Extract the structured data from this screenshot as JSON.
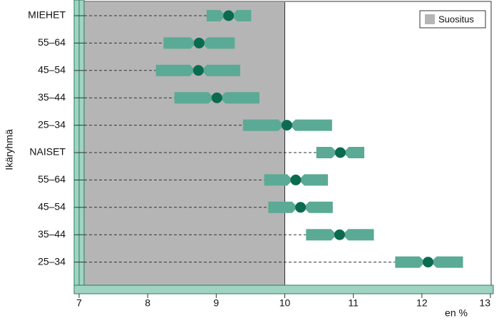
{
  "chart_data": {
    "type": "interval-dot",
    "y_label": "Ikäryhmä",
    "x_label": "en %",
    "categories": [
      "MIEHET",
      "55–64",
      "45–54",
      "35–44",
      "25–34",
      "NAISET",
      "55–64",
      "45–54",
      "35–44",
      "25–34"
    ],
    "low": [
      8.86,
      8.23,
      8.12,
      8.39,
      9.39,
      10.46,
      9.7,
      9.76,
      10.31,
      11.61
    ],
    "values": [
      9.18,
      8.75,
      8.74,
      9.01,
      10.03,
      10.81,
      10.16,
      10.23,
      10.8,
      12.09
    ],
    "high": [
      9.51,
      9.27,
      9.35,
      9.63,
      10.69,
      11.16,
      10.63,
      10.7,
      11.3,
      12.6
    ],
    "color": "#5aaa95",
    "dot_color": "#0b6b4f",
    "recommendation": {
      "label": "Suositus",
      "range": [
        7,
        10
      ],
      "color": "#b5b5b5"
    },
    "xlim": [
      7,
      13
    ],
    "xticks": [
      7,
      8,
      9,
      10,
      11,
      12,
      13
    ],
    "legend": "top-right"
  }
}
